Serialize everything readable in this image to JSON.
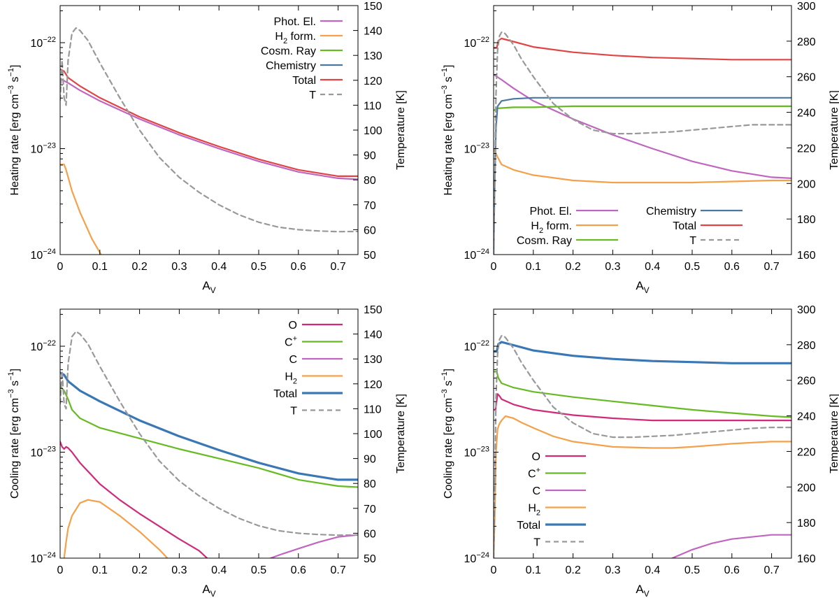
{
  "chart_data": [
    {
      "type": "line",
      "xlabel": "A",
      "xlabel_sub": "V",
      "ylabel": "Heating rate  [erg cm",
      "ylabel_sup1": "−3",
      "ylabel_mid": " s",
      "ylabel_sup2": "−1",
      "ylabel_end": "]",
      "y2label": "Temperature [K]",
      "xlim": [
        0,
        0.75
      ],
      "ylim_log10": [
        -24,
        -21.65
      ],
      "y_ticks": [
        -24,
        -23,
        -22
      ],
      "y2lim": [
        50,
        150
      ],
      "y2_ticks": [
        50,
        60,
        70,
        80,
        90,
        100,
        110,
        120,
        130,
        140,
        150
      ],
      "x_ticks": [
        "0",
        "0.1",
        "0.2",
        "0.3",
        "0.4",
        "0.5",
        "0.6",
        "0.7"
      ],
      "legend": "top-right",
      "series": [
        {
          "name": "Phot. El.",
          "color": "#c066c0",
          "axis": "y1",
          "x": [
            0,
            0.02,
            0.05,
            0.1,
            0.2,
            0.3,
            0.4,
            0.5,
            0.6,
            0.7,
            0.75
          ],
          "y": [
            -22.34,
            -22.38,
            -22.45,
            -22.55,
            -22.72,
            -22.87,
            -23.0,
            -23.12,
            -23.22,
            -23.28,
            -23.29
          ]
        },
        {
          "name": "H",
          "sub": "2",
          "name_end": " form.",
          "color": "#f5a04a",
          "axis": "y1",
          "x": [
            0,
            0.01,
            0.015,
            0.03,
            0.05,
            0.08,
            0.1,
            0.11
          ],
          "y": [
            -23.15,
            -23.15,
            -23.2,
            -23.4,
            -23.6,
            -23.85,
            -23.98,
            -24.05
          ]
        },
        {
          "name": "Cosm. Ray",
          "color": "#66bb22",
          "axis": "y1",
          "x": [],
          "y": []
        },
        {
          "name": "Chemistry",
          "color": "#4a78a0",
          "axis": "y1",
          "x": [],
          "y": []
        },
        {
          "name": "Total",
          "color": "#e04444",
          "axis": "y1",
          "x": [
            0,
            0.01,
            0.02,
            0.05,
            0.1,
            0.2,
            0.3,
            0.4,
            0.5,
            0.6,
            0.7,
            0.75
          ],
          "y": [
            -22.25,
            -22.27,
            -22.33,
            -22.41,
            -22.52,
            -22.7,
            -22.85,
            -22.98,
            -23.1,
            -23.2,
            -23.26,
            -23.26
          ]
        },
        {
          "name": "T",
          "color": "#999999",
          "dash": true,
          "axis": "y2",
          "x": [
            0,
            0.005,
            0.01,
            0.015,
            0.02,
            0.03,
            0.04,
            0.05,
            0.07,
            0.1,
            0.15,
            0.2,
            0.25,
            0.3,
            0.35,
            0.4,
            0.45,
            0.5,
            0.55,
            0.6,
            0.65,
            0.7,
            0.75
          ],
          "y": [
            112,
            128,
            113,
            110,
            128,
            139,
            141,
            140,
            136,
            127,
            113,
            100,
            89,
            81,
            75,
            70,
            66,
            63,
            61,
            60,
            59.5,
            59.2,
            59.3
          ]
        }
      ]
    },
    {
      "type": "line",
      "xlabel": "A",
      "xlabel_sub": "V",
      "ylabel": "Heating rate  [erg cm",
      "ylabel_sup1": "−3",
      "ylabel_mid": " s",
      "ylabel_sup2": "−1",
      "ylabel_end": "]",
      "y2label": "Temperature [K]",
      "xlim": [
        0,
        0.75
      ],
      "ylim_log10": [
        -24,
        -21.65
      ],
      "y_ticks": [
        -24,
        -23,
        -22
      ],
      "y2lim": [
        160,
        300
      ],
      "y2_ticks": [
        160,
        180,
        200,
        220,
        240,
        260,
        280,
        300
      ],
      "x_ticks": [
        "0",
        "0.1",
        "0.2",
        "0.3",
        "0.4",
        "0.5",
        "0.6",
        "0.7"
      ],
      "legend": "bottom-center",
      "series": [
        {
          "name": "Phot. El.",
          "color": "#c066c0",
          "axis": "y1",
          "x": [
            0,
            0.02,
            0.05,
            0.1,
            0.2,
            0.3,
            0.4,
            0.5,
            0.6,
            0.7,
            0.75
          ],
          "y": [
            -22.3,
            -22.35,
            -22.43,
            -22.55,
            -22.72,
            -22.87,
            -23.0,
            -23.12,
            -23.21,
            -23.27,
            -23.28
          ]
        },
        {
          "name": "H",
          "sub": "2",
          "name_end": " form.",
          "color": "#f5a04a",
          "axis": "y1",
          "x": [
            0,
            0.01,
            0.02,
            0.05,
            0.1,
            0.2,
            0.3,
            0.4,
            0.5,
            0.6,
            0.7,
            0.75
          ],
          "y": [
            -23.0,
            -23.08,
            -23.15,
            -23.2,
            -23.25,
            -23.3,
            -23.32,
            -23.32,
            -23.32,
            -23.31,
            -23.3,
            -23.3
          ]
        },
        {
          "name": "Cosm. Ray",
          "color": "#66bb22",
          "axis": "y1",
          "x": [
            0,
            0.01,
            0.05,
            0.1,
            0.2,
            0.3,
            0.4,
            0.5,
            0.6,
            0.7,
            0.75
          ],
          "y": [
            -22.64,
            -22.62,
            -22.61,
            -22.61,
            -22.6,
            -22.6,
            -22.6,
            -22.6,
            -22.6,
            -22.6,
            -22.6
          ]
        },
        {
          "name": "Chemistry",
          "color": "#4a78a0",
          "axis": "y1",
          "x": [
            0,
            0.002,
            0.006,
            0.01,
            0.02,
            0.05,
            0.1,
            0.2,
            0.3,
            0.4,
            0.5,
            0.6,
            0.7,
            0.75
          ],
          "y": [
            -24.0,
            -23.5,
            -22.8,
            -22.6,
            -22.55,
            -22.53,
            -22.52,
            -22.52,
            -22.52,
            -22.52,
            -22.52,
            -22.52,
            -22.52,
            -22.52
          ]
        },
        {
          "name": "Total",
          "color": "#e04444",
          "axis": "y1",
          "x": [
            0,
            0.008,
            0.012,
            0.02,
            0.03,
            0.05,
            0.1,
            0.2,
            0.3,
            0.4,
            0.5,
            0.6,
            0.7,
            0.75
          ],
          "y": [
            -22.05,
            -22.05,
            -21.98,
            -21.96,
            -21.97,
            -21.99,
            -22.04,
            -22.09,
            -22.12,
            -22.14,
            -22.15,
            -22.16,
            -22.16,
            -22.16
          ]
        },
        {
          "name": "T",
          "color": "#999999",
          "dash": true,
          "axis": "y2",
          "x": [
            0,
            0.003,
            0.006,
            0.01,
            0.015,
            0.02,
            0.025,
            0.03,
            0.05,
            0.07,
            0.1,
            0.15,
            0.2,
            0.25,
            0.3,
            0.35,
            0.4,
            0.45,
            0.5,
            0.55,
            0.6,
            0.65,
            0.7,
            0.75
          ],
          "y": [
            160,
            200,
            250,
            275,
            283,
            285,
            285,
            284,
            278,
            270,
            260,
            245,
            236,
            230,
            228,
            228,
            228.5,
            229,
            230,
            231,
            232,
            233,
            233,
            233
          ]
        }
      ]
    },
    {
      "type": "line",
      "xlabel": "A",
      "xlabel_sub": "V",
      "ylabel": "Cooling rate  [erg cm",
      "ylabel_sup1": "−3",
      "ylabel_mid": " s",
      "ylabel_sup2": "−1",
      "ylabel_end": "]",
      "y2label": "Temperature [K]",
      "xlim": [
        0,
        0.75
      ],
      "ylim_log10": [
        -24,
        -21.65
      ],
      "y_ticks": [
        -24,
        -23,
        -22
      ],
      "y2lim": [
        50,
        150
      ],
      "y2_ticks": [
        50,
        60,
        70,
        80,
        90,
        100,
        110,
        120,
        130,
        140,
        150
      ],
      "x_ticks": [
        "0",
        "0.1",
        "0.2",
        "0.3",
        "0.4",
        "0.5",
        "0.6",
        "0.7"
      ],
      "legend": "top-right",
      "series": [
        {
          "name": "O",
          "color": "#d02a7a",
          "axis": "y1",
          "x": [
            0,
            0.005,
            0.01,
            0.015,
            0.02,
            0.03,
            0.05,
            0.1,
            0.15,
            0.2,
            0.25,
            0.3,
            0.35,
            0.37
          ],
          "y": [
            -22.9,
            -22.95,
            -22.97,
            -22.95,
            -22.96,
            -23.0,
            -23.1,
            -23.3,
            -23.45,
            -23.58,
            -23.7,
            -23.82,
            -23.93,
            -24.0
          ]
        },
        {
          "name": "C",
          "sup": "+",
          "color": "#66bb22",
          "axis": "y1",
          "x": [
            0,
            0.005,
            0.01,
            0.02,
            0.03,
            0.05,
            0.1,
            0.2,
            0.3,
            0.4,
            0.5,
            0.6,
            0.7,
            0.75
          ],
          "y": [
            -22.38,
            -22.4,
            -22.42,
            -22.5,
            -22.6,
            -22.68,
            -22.77,
            -22.87,
            -22.97,
            -23.06,
            -23.15,
            -23.26,
            -23.32,
            -23.33
          ]
        },
        {
          "name": "C",
          "color": "#c066c0",
          "axis": "y1",
          "x": [
            0.53,
            0.56,
            0.6,
            0.65,
            0.7,
            0.75
          ],
          "y": [
            -24.0,
            -23.96,
            -23.91,
            -23.85,
            -23.8,
            -23.78
          ]
        },
        {
          "name": "H",
          "sub": "2",
          "color": "#f5a04a",
          "axis": "y1",
          "x": [
            0.01,
            0.015,
            0.02,
            0.03,
            0.05,
            0.07,
            0.1,
            0.15,
            0.2,
            0.25,
            0.27
          ],
          "y": [
            -24.0,
            -23.85,
            -23.72,
            -23.6,
            -23.48,
            -23.45,
            -23.47,
            -23.6,
            -23.75,
            -23.92,
            -24.0
          ]
        },
        {
          "name": "Total",
          "color": "#3a78b5",
          "axis": "y1",
          "thick": true,
          "x": [
            0,
            0.01,
            0.02,
            0.05,
            0.1,
            0.2,
            0.3,
            0.4,
            0.5,
            0.6,
            0.7,
            0.75
          ],
          "y": [
            -22.25,
            -22.27,
            -22.33,
            -22.42,
            -22.52,
            -22.7,
            -22.85,
            -22.98,
            -23.1,
            -23.2,
            -23.26,
            -23.26
          ]
        },
        {
          "name": "T",
          "color": "#999999",
          "dash": true,
          "axis": "y2",
          "x": [
            0,
            0.005,
            0.01,
            0.015,
            0.02,
            0.03,
            0.04,
            0.05,
            0.07,
            0.1,
            0.15,
            0.2,
            0.25,
            0.3,
            0.35,
            0.4,
            0.45,
            0.5,
            0.55,
            0.6,
            0.65,
            0.7,
            0.75
          ],
          "y": [
            112,
            125,
            112,
            110,
            128,
            139,
            141,
            140,
            136,
            127,
            113,
            100,
            89,
            81,
            75,
            70,
            66,
            63,
            61,
            60,
            59.5,
            59.2,
            59.3
          ]
        }
      ]
    },
    {
      "type": "line",
      "xlabel": "A",
      "xlabel_sub": "V",
      "ylabel": "Cooling rate  [erg cm",
      "ylabel_sup1": "−3",
      "ylabel_mid": " s",
      "ylabel_sup2": "−1",
      "ylabel_end": "]",
      "y2label": "Temperature [K]",
      "xlim": [
        0,
        0.75
      ],
      "ylim_log10": [
        -24,
        -21.65
      ],
      "y_ticks": [
        -24,
        -23,
        -22
      ],
      "y2lim": [
        160,
        300
      ],
      "y2_ticks": [
        160,
        180,
        200,
        220,
        240,
        260,
        280,
        300
      ],
      "x_ticks": [
        "0",
        "0.1",
        "0.2",
        "0.3",
        "0.4",
        "0.5",
        "0.6",
        "0.7"
      ],
      "legend": "bottom-left",
      "series": [
        {
          "name": "O",
          "color": "#d02a7a",
          "axis": "y1",
          "x": [
            0,
            0.005,
            0.01,
            0.015,
            0.02,
            0.05,
            0.1,
            0.2,
            0.3,
            0.4,
            0.5,
            0.6,
            0.7,
            0.75
          ],
          "y": [
            -22.6,
            -22.6,
            -22.45,
            -22.47,
            -22.5,
            -22.55,
            -22.6,
            -22.65,
            -22.68,
            -22.7,
            -22.7,
            -22.7,
            -22.7,
            -22.7
          ]
        },
        {
          "name": "C",
          "sup": "+",
          "color": "#66bb22",
          "axis": "y1",
          "x": [
            0,
            0.008,
            0.012,
            0.02,
            0.05,
            0.1,
            0.2,
            0.3,
            0.4,
            0.5,
            0.6,
            0.7,
            0.75
          ],
          "y": [
            -22.24,
            -22.24,
            -22.3,
            -22.35,
            -22.39,
            -22.43,
            -22.48,
            -22.52,
            -22.56,
            -22.6,
            -22.63,
            -22.66,
            -22.67
          ]
        },
        {
          "name": "C",
          "color": "#c066c0",
          "axis": "y1",
          "x": [
            0.45,
            0.5,
            0.55,
            0.6,
            0.65,
            0.7,
            0.75
          ],
          "y": [
            -24.0,
            -23.92,
            -23.86,
            -23.82,
            -23.8,
            -23.78,
            -23.78
          ]
        },
        {
          "name": "H",
          "sub": "2",
          "color": "#f5a04a",
          "axis": "y1",
          "x": [
            0,
            0.003,
            0.006,
            0.01,
            0.015,
            0.02,
            0.03,
            0.05,
            0.07,
            0.1,
            0.15,
            0.2,
            0.3,
            0.4,
            0.45,
            0.5,
            0.6,
            0.7,
            0.75
          ],
          "y": [
            -24.0,
            -23.6,
            -23.0,
            -22.78,
            -22.73,
            -22.7,
            -22.66,
            -22.68,
            -22.72,
            -22.77,
            -22.85,
            -22.9,
            -22.95,
            -22.96,
            -22.96,
            -22.95,
            -22.92,
            -22.9,
            -22.9
          ]
        },
        {
          "name": "Total",
          "color": "#3a78b5",
          "axis": "y1",
          "thick": true,
          "x": [
            0,
            0.008,
            0.012,
            0.02,
            0.03,
            0.05,
            0.1,
            0.2,
            0.3,
            0.4,
            0.5,
            0.6,
            0.7,
            0.75
          ],
          "y": [
            -22.05,
            -22.05,
            -21.98,
            -21.96,
            -21.97,
            -21.99,
            -22.04,
            -22.09,
            -22.12,
            -22.14,
            -22.15,
            -22.16,
            -22.16,
            -22.16
          ]
        },
        {
          "name": "T",
          "color": "#999999",
          "dash": true,
          "axis": "y2",
          "x": [
            0,
            0.003,
            0.006,
            0.01,
            0.015,
            0.02,
            0.025,
            0.03,
            0.05,
            0.07,
            0.1,
            0.15,
            0.2,
            0.25,
            0.3,
            0.35,
            0.4,
            0.45,
            0.5,
            0.55,
            0.6,
            0.65,
            0.7,
            0.75
          ],
          "y": [
            160,
            200,
            250,
            275,
            283,
            285,
            285,
            284,
            278,
            270,
            260,
            245,
            236,
            230,
            228,
            228,
            228.5,
            229,
            230,
            231,
            232,
            233,
            233.5,
            233.5
          ]
        }
      ]
    }
  ]
}
